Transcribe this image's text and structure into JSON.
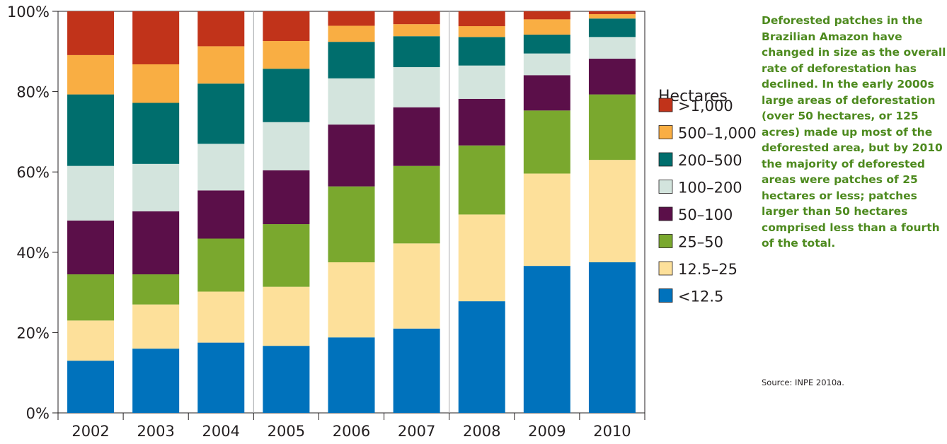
{
  "chart_data": {
    "type": "bar",
    "stacked": true,
    "categories": [
      "2002",
      "2003",
      "2004",
      "2005",
      "2006",
      "2007",
      "2008",
      "2009",
      "2010"
    ],
    "y_tick_labels": [
      "0%",
      "20%",
      "40%",
      "60%",
      "80%",
      "100%"
    ],
    "ylim": [
      0,
      100
    ],
    "legend_title": "Hectares",
    "legend_position": "right",
    "series": [
      {
        "name": "<12.5",
        "color": "#0072bc",
        "values": [
          13,
          16,
          17.5,
          16.7,
          18.8,
          21,
          27.8,
          36.6,
          37.5
        ]
      },
      {
        "name": "12.5–25",
        "color": "#fde09a",
        "values": [
          10,
          11,
          12.7,
          14.7,
          18.7,
          21.2,
          21.6,
          23,
          25.5
        ]
      },
      {
        "name": "25–50",
        "color": "#7aa82e",
        "values": [
          11.5,
          7.5,
          13.2,
          15.6,
          18.9,
          19.3,
          17.2,
          15.7,
          16.3
        ]
      },
      {
        "name": "50–100",
        "color": "#5b0f49",
        "values": [
          13.4,
          15.7,
          12,
          13.4,
          15.4,
          14.6,
          11.6,
          8.8,
          8.9
        ]
      },
      {
        "name": "100–200",
        "color": "#d3e4dd",
        "values": [
          13.6,
          11.8,
          11.6,
          12,
          11.5,
          10,
          8.3,
          5.4,
          5.4
        ]
      },
      {
        "name": "200–500",
        "color": "#006e6d",
        "values": [
          17.8,
          15.2,
          15,
          13.3,
          9.1,
          7.7,
          7.1,
          4.7,
          4.6
        ]
      },
      {
        "name": "500–1,000",
        "color": "#f9ae43",
        "values": [
          9.8,
          9.6,
          9.3,
          6.9,
          4,
          3,
          2.7,
          3.8,
          1.1
        ]
      },
      {
        "name": ">1,000",
        "color": "#c1331a",
        "values": [
          10.9,
          13.2,
          8.7,
          7.4,
          3.6,
          3.2,
          3.7,
          2,
          0.7
        ]
      }
    ]
  },
  "caption": "Deforested patches in the Brazilian Amazon have changed in size as the overall rate of deforestation has declined. In the early 2000s large areas of deforestation (over 50 hectares, or 125 acres) made up most of the deforested area, but by 2010 the majority of deforested areas were patches of 25 hectares or less; patches larger than 50 hectares comprised less than a fourth of the total.",
  "source": "Source: INPE 2010a."
}
